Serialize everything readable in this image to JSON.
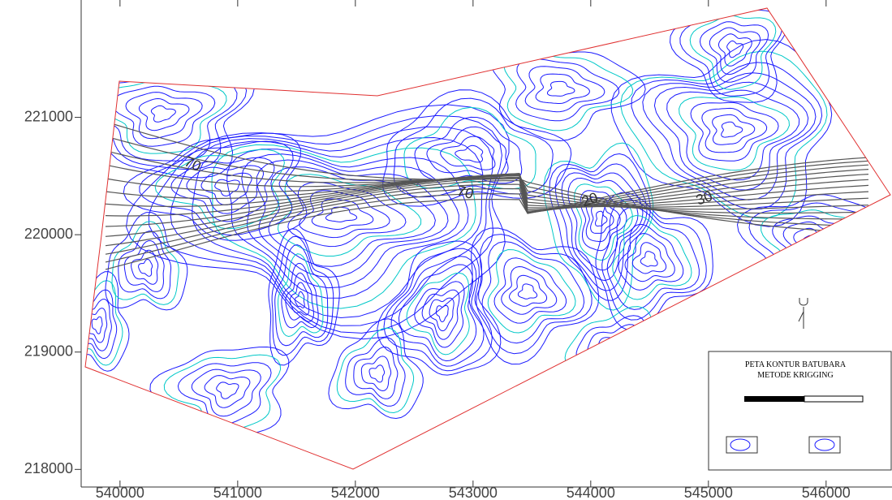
{
  "map": {
    "xlim": [
      539670,
      546560
    ],
    "ylim": [
      217850,
      222000
    ],
    "xticks": [
      540000,
      541000,
      542000,
      543000,
      544000,
      545000,
      546000
    ],
    "yticks": [
      218000,
      219000,
      220000,
      221000
    ],
    "contour_labels": [
      "70",
      "70",
      "20",
      "30"
    ],
    "legend": {
      "title": "PETA KONTUR BATUBARA",
      "subtitle": "METODE KRIGGING"
    }
  }
}
